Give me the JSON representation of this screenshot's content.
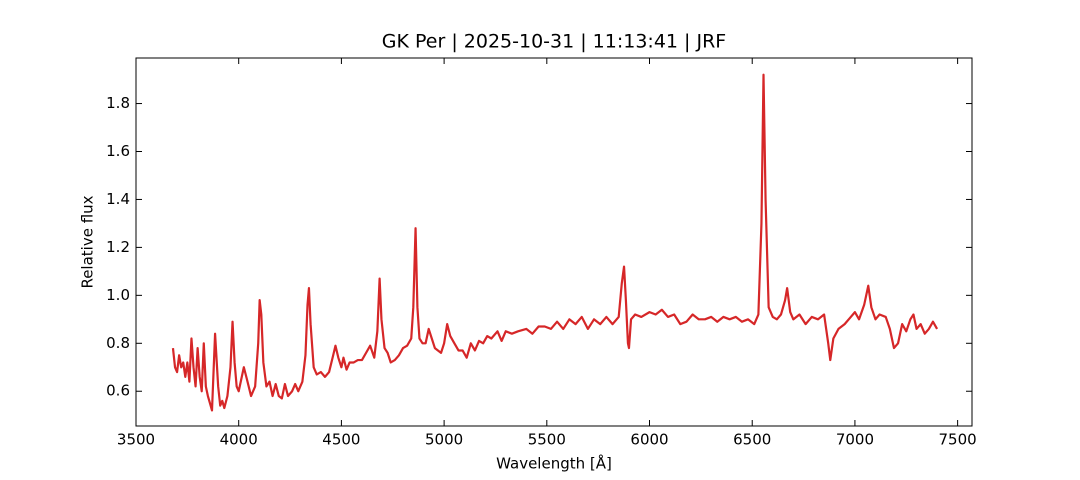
{
  "chart_data": {
    "type": "line",
    "title": "GK Per | 2025-10-31 | 11:13:41 | JRF",
    "x_label": "Wavelength [Å]",
    "y_label": "Relative flux",
    "xlim": [
      3500,
      7570
    ],
    "ylim": [
      0.455,
      1.99
    ],
    "xticks": [
      3500,
      4000,
      4500,
      5000,
      5500,
      6000,
      6500,
      7000,
      7500
    ],
    "yticks": [
      0.6,
      0.8,
      1.0,
      1.2,
      1.4,
      1.6,
      1.8
    ],
    "yticks_labels": [
      "0.6",
      "0.8",
      "1.0",
      "1.2",
      "1.4",
      "1.6",
      "1.8"
    ],
    "grid": false,
    "series": [
      {
        "color": "#d62728",
        "x": [
          3680,
          3690,
          3700,
          3710,
          3720,
          3730,
          3740,
          3750,
          3760,
          3770,
          3780,
          3790,
          3800,
          3810,
          3820,
          3830,
          3840,
          3850,
          3860,
          3870,
          3885,
          3900,
          3910,
          3920,
          3930,
          3945,
          3960,
          3970,
          3980,
          3990,
          4000,
          4010,
          4025,
          4040,
          4060,
          4080,
          4095,
          4102,
          4110,
          4120,
          4135,
          4150,
          4165,
          4180,
          4195,
          4210,
          4225,
          4240,
          4260,
          4275,
          4290,
          4310,
          4325,
          4335,
          4342,
          4350,
          4365,
          4380,
          4400,
          4420,
          4440,
          4460,
          4471,
          4485,
          4500,
          4510,
          4525,
          4540,
          4560,
          4580,
          4600,
          4620,
          4640,
          4660,
          4675,
          4686,
          4695,
          4710,
          4725,
          4740,
          4760,
          4780,
          4800,
          4820,
          4840,
          4850,
          4861,
          4870,
          4880,
          4895,
          4910,
          4925,
          4940,
          4955,
          4970,
          4985,
          5000,
          5015,
          5030,
          5050,
          5070,
          5090,
          5110,
          5130,
          5150,
          5170,
          5190,
          5210,
          5230,
          5260,
          5280,
          5300,
          5330,
          5360,
          5400,
          5430,
          5460,
          5490,
          5520,
          5550,
          5580,
          5610,
          5640,
          5670,
          5700,
          5730,
          5760,
          5790,
          5820,
          5850,
          5865,
          5876,
          5885,
          5895,
          5900,
          5910,
          5930,
          5960,
          6000,
          6030,
          6060,
          6090,
          6120,
          6150,
          6180,
          6210,
          6240,
          6270,
          6300,
          6330,
          6360,
          6390,
          6420,
          6450,
          6480,
          6510,
          6530,
          6545,
          6555,
          6565,
          6580,
          6600,
          6620,
          6640,
          6660,
          6670,
          6685,
          6700,
          6730,
          6760,
          6790,
          6820,
          6850,
          6870,
          6880,
          6895,
          6920,
          6950,
          6980,
          7000,
          7020,
          7045,
          7065,
          7080,
          7100,
          7120,
          7150,
          7170,
          7190,
          7210,
          7230,
          7250,
          7270,
          7285,
          7300,
          7320,
          7340,
          7360,
          7380,
          7400
        ],
        "values": [
          0.78,
          0.7,
          0.68,
          0.75,
          0.7,
          0.72,
          0.66,
          0.72,
          0.64,
          0.82,
          0.7,
          0.62,
          0.78,
          0.66,
          0.6,
          0.8,
          0.62,
          0.58,
          0.55,
          0.52,
          0.84,
          0.62,
          0.54,
          0.56,
          0.53,
          0.58,
          0.7,
          0.89,
          0.72,
          0.62,
          0.6,
          0.64,
          0.7,
          0.65,
          0.58,
          0.62,
          0.8,
          0.98,
          0.92,
          0.72,
          0.62,
          0.64,
          0.58,
          0.63,
          0.58,
          0.57,
          0.63,
          0.58,
          0.6,
          0.63,
          0.6,
          0.64,
          0.75,
          0.96,
          1.03,
          0.88,
          0.7,
          0.67,
          0.68,
          0.66,
          0.68,
          0.75,
          0.79,
          0.74,
          0.7,
          0.74,
          0.69,
          0.72,
          0.72,
          0.73,
          0.73,
          0.76,
          0.79,
          0.74,
          0.85,
          1.07,
          0.9,
          0.78,
          0.76,
          0.72,
          0.73,
          0.75,
          0.78,
          0.79,
          0.82,
          0.95,
          1.28,
          0.95,
          0.82,
          0.8,
          0.8,
          0.86,
          0.82,
          0.78,
          0.77,
          0.76,
          0.8,
          0.88,
          0.83,
          0.8,
          0.77,
          0.77,
          0.74,
          0.8,
          0.77,
          0.81,
          0.8,
          0.83,
          0.82,
          0.85,
          0.81,
          0.85,
          0.84,
          0.85,
          0.86,
          0.84,
          0.87,
          0.87,
          0.86,
          0.89,
          0.86,
          0.9,
          0.88,
          0.91,
          0.86,
          0.9,
          0.88,
          0.91,
          0.88,
          0.91,
          1.05,
          1.12,
          0.98,
          0.8,
          0.78,
          0.9,
          0.92,
          0.91,
          0.93,
          0.92,
          0.94,
          0.91,
          0.92,
          0.88,
          0.89,
          0.92,
          0.9,
          0.9,
          0.91,
          0.89,
          0.91,
          0.9,
          0.91,
          0.89,
          0.9,
          0.88,
          0.92,
          1.3,
          1.92,
          1.4,
          0.95,
          0.91,
          0.9,
          0.92,
          0.98,
          1.03,
          0.93,
          0.9,
          0.92,
          0.88,
          0.91,
          0.9,
          0.92,
          0.8,
          0.73,
          0.82,
          0.86,
          0.88,
          0.91,
          0.93,
          0.9,
          0.96,
          1.04,
          0.95,
          0.9,
          0.92,
          0.91,
          0.86,
          0.78,
          0.8,
          0.88,
          0.85,
          0.9,
          0.92,
          0.86,
          0.88,
          0.84,
          0.86,
          0.89,
          0.86
        ]
      }
    ]
  }
}
